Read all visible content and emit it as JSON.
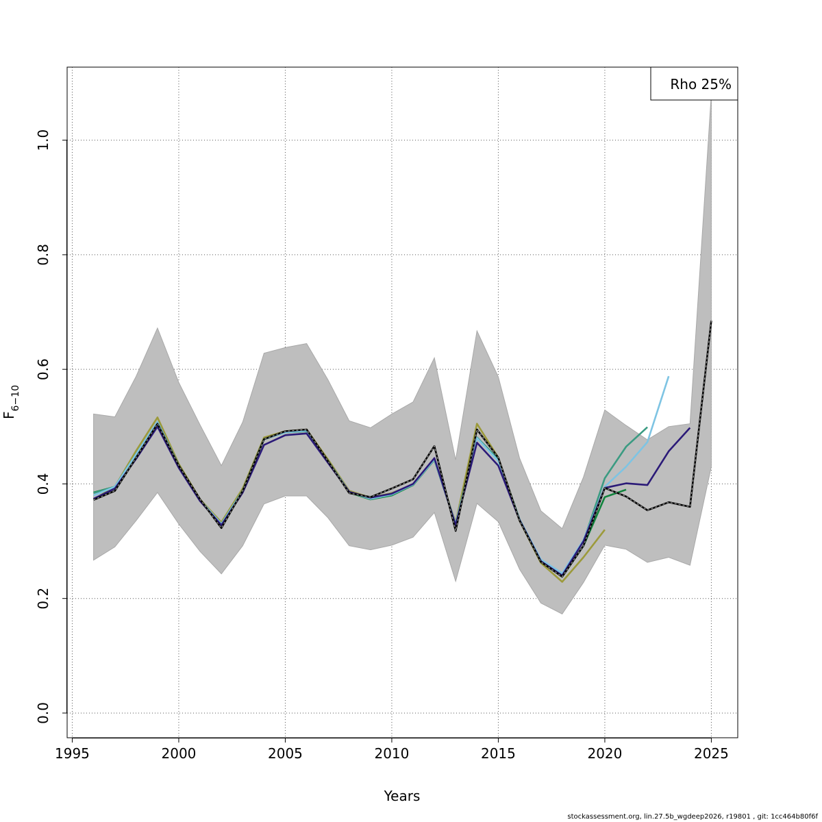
{
  "chart_data": {
    "type": "line",
    "title": "",
    "xlabel": "Years",
    "ylabel_main": "F",
    "ylabel_sub": "6−10",
    "xlim": [
      1995,
      2026
    ],
    "ylim": [
      0,
      1.1
    ],
    "x_ticks": [
      "1995",
      "2000",
      "2005",
      "2010",
      "2015",
      "2020",
      "2025"
    ],
    "y_ticks": [
      "0.0",
      "0.2",
      "0.4",
      "0.6",
      "0.8",
      "1.0"
    ],
    "grid": true,
    "legend": {
      "placement": "top-right",
      "text": "Rho 25%"
    },
    "band": {
      "color": "#bebebe",
      "x": [
        1996,
        1997,
        1998,
        1999,
        2000,
        2001,
        2002,
        2003,
        2004,
        2005,
        2006,
        2007,
        2008,
        2009,
        2010,
        2011,
        2012,
        2013,
        2014,
        2015,
        2016,
        2017,
        2018,
        2019,
        2020,
        2021,
        2022,
        2023,
        2024,
        2025
      ],
      "upper": [
        0.522,
        0.517,
        0.588,
        0.672,
        0.577,
        0.503,
        0.432,
        0.508,
        0.628,
        0.638,
        0.645,
        0.582,
        0.51,
        0.498,
        0.522,
        0.543,
        0.62,
        0.442,
        0.667,
        0.587,
        0.445,
        0.353,
        0.322,
        0.412,
        0.529,
        0.502,
        0.477,
        0.5,
        0.505,
        1.08
      ],
      "lower": [
        0.267,
        0.29,
        0.336,
        0.385,
        0.33,
        0.282,
        0.243,
        0.292,
        0.365,
        0.379,
        0.379,
        0.341,
        0.292,
        0.285,
        0.293,
        0.307,
        0.35,
        0.23,
        0.366,
        0.334,
        0.251,
        0.192,
        0.173,
        0.228,
        0.293,
        0.286,
        0.263,
        0.272,
        0.258,
        0.43
      ]
    },
    "series": [
      {
        "color": "#000000",
        "dashed_overlay": true,
        "x": [
          1996,
          1997,
          1998,
          1999,
          2000,
          2001,
          2002,
          2003,
          2004,
          2005,
          2006,
          2007,
          2008,
          2009,
          2010,
          2011,
          2012,
          2013,
          2014,
          2015,
          2016,
          2017,
          2018,
          2019,
          2020,
          2021,
          2022,
          2023,
          2024,
          2025
        ],
        "values": [
          0.372,
          0.388,
          0.446,
          0.505,
          0.432,
          0.373,
          0.323,
          0.388,
          0.478,
          0.492,
          0.495,
          0.44,
          0.384,
          0.377,
          0.392,
          0.408,
          0.466,
          0.318,
          0.495,
          0.446,
          0.336,
          0.264,
          0.238,
          0.292,
          0.393,
          0.378,
          0.354,
          0.368,
          0.36,
          0.685
        ]
      },
      {
        "color": "#2b1a78",
        "x": [
          1996,
          1997,
          1998,
          1999,
          2000,
          2001,
          2002,
          2003,
          2004,
          2005,
          2006,
          2007,
          2008,
          2009,
          2010,
          2011,
          2012,
          2013,
          2014,
          2015,
          2016,
          2017,
          2018,
          2019,
          2020,
          2021,
          2022,
          2023,
          2024
        ],
        "values": [
          0.374,
          0.392,
          0.444,
          0.5,
          0.428,
          0.37,
          0.328,
          0.385,
          0.468,
          0.485,
          0.488,
          0.437,
          0.386,
          0.376,
          0.383,
          0.4,
          0.445,
          0.328,
          0.472,
          0.432,
          0.337,
          0.265,
          0.24,
          0.3,
          0.393,
          0.401,
          0.398,
          0.457,
          0.498
        ]
      },
      {
        "color": "#7ec4e3",
        "x": [
          1996,
          1997,
          1998,
          1999,
          2000,
          2001,
          2002,
          2003,
          2004,
          2005,
          2006,
          2007,
          2008,
          2009,
          2010,
          2011,
          2012,
          2013,
          2014,
          2015,
          2016,
          2017,
          2018,
          2019,
          2020,
          2021,
          2022,
          2023
        ],
        "values": [
          0.38,
          0.395,
          0.452,
          0.508,
          0.432,
          0.372,
          0.33,
          0.388,
          0.478,
          0.49,
          0.493,
          0.44,
          0.386,
          0.374,
          0.382,
          0.399,
          0.443,
          0.33,
          0.48,
          0.44,
          0.338,
          0.268,
          0.244,
          0.302,
          0.395,
          0.43,
          0.473,
          0.588
        ]
      },
      {
        "color": "#3b9b82",
        "x": [
          1996,
          1997,
          1998,
          1999,
          2000,
          2001,
          2002,
          2003,
          2004,
          2005,
          2006,
          2007,
          2008,
          2009,
          2010,
          2011,
          2012,
          2013,
          2014,
          2015,
          2016,
          2017,
          2018,
          2019,
          2020,
          2021,
          2022
        ],
        "values": [
          0.384,
          0.395,
          0.452,
          0.508,
          0.432,
          0.371,
          0.33,
          0.388,
          0.478,
          0.49,
          0.492,
          0.44,
          0.386,
          0.374,
          0.381,
          0.399,
          0.443,
          0.33,
          0.481,
          0.442,
          0.338,
          0.267,
          0.242,
          0.3,
          0.41,
          0.465,
          0.499
        ]
      },
      {
        "color": "#11833d",
        "x": [
          1996,
          1997,
          1998,
          1999,
          2000,
          2001,
          2002,
          2003,
          2004,
          2005,
          2006,
          2007,
          2008,
          2009,
          2010,
          2011,
          2012,
          2013,
          2014,
          2015,
          2016,
          2017,
          2018,
          2019,
          2020,
          2021
        ],
        "values": [
          0.385,
          0.395,
          0.452,
          0.508,
          0.432,
          0.371,
          0.33,
          0.388,
          0.478,
          0.49,
          0.492,
          0.44,
          0.385,
          0.373,
          0.38,
          0.398,
          0.442,
          0.33,
          0.481,
          0.443,
          0.338,
          0.266,
          0.238,
          0.292,
          0.377,
          0.39
        ]
      },
      {
        "color": "#9c9a3b",
        "x": [
          1996,
          1997,
          1998,
          1999,
          2000,
          2001,
          2002,
          2003,
          2004,
          2005,
          2006,
          2007,
          2008,
          2009,
          2010,
          2011,
          2012,
          2013,
          2014,
          2015,
          2016,
          2017,
          2018,
          2019,
          2020
        ],
        "values": [
          0.373,
          0.395,
          0.458,
          0.516,
          0.435,
          0.373,
          0.333,
          0.392,
          0.481,
          0.492,
          0.495,
          0.443,
          0.388,
          0.376,
          0.384,
          0.399,
          0.443,
          0.332,
          0.505,
          0.446,
          0.336,
          0.262,
          0.229,
          0.272,
          0.32
        ]
      }
    ]
  },
  "footer_text": "stockassessment.org, lin.27.5b_wgdeep2026, r19801 , git: 1cc464b80f6f"
}
